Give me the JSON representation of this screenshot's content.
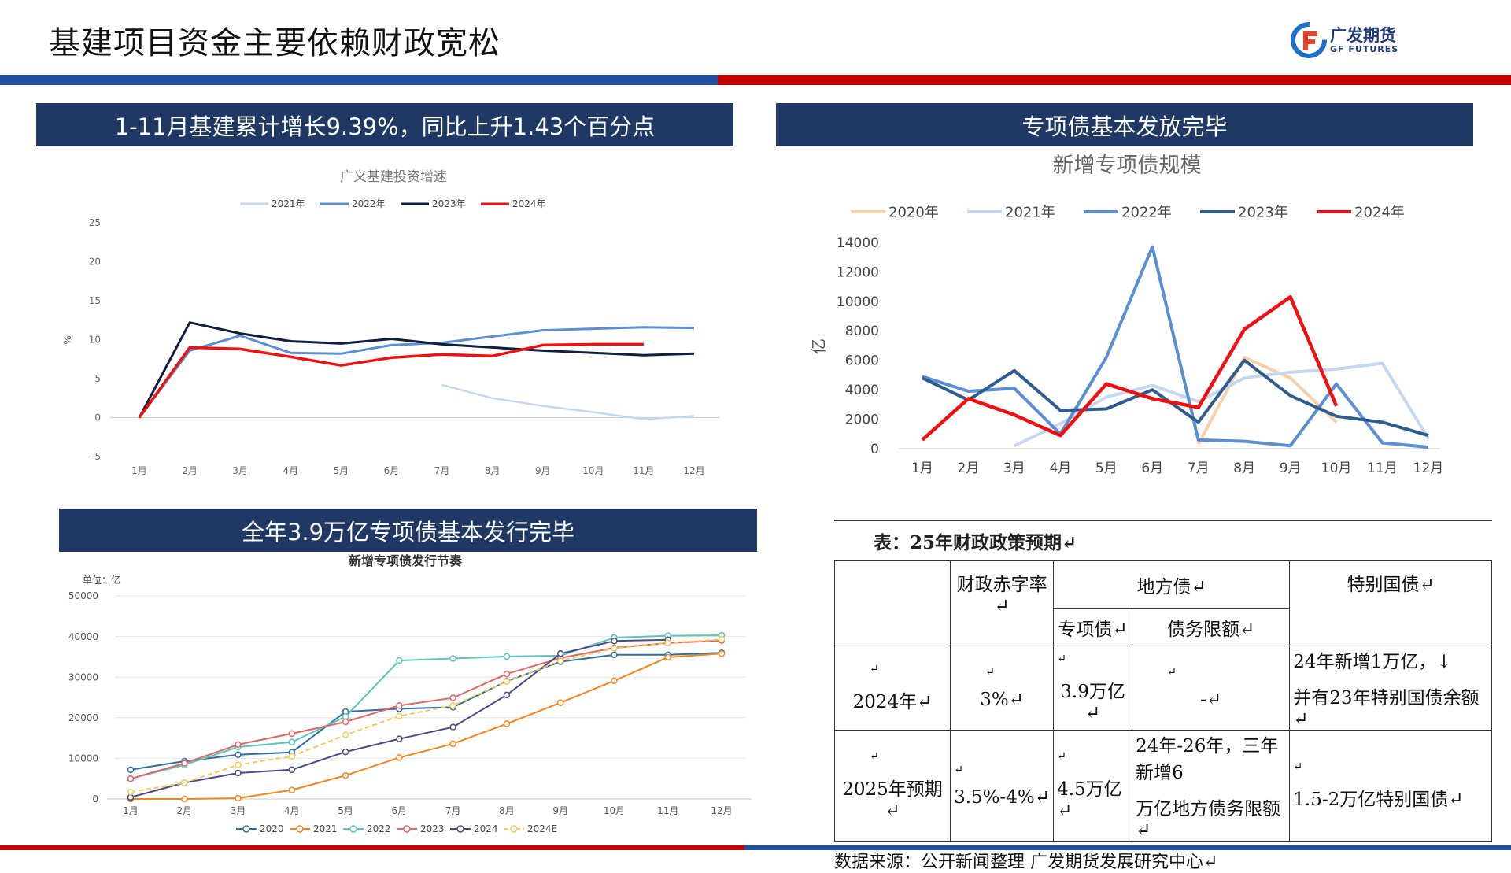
{
  "page": {
    "title": "基建项目资金主要依赖财政宽松",
    "logo_cn": "广发期货",
    "logo_en": "GF FUTURES"
  },
  "headers": {
    "top_left": "1-11月基建累计增长9.39%，同比上升1.43个百分点",
    "top_right": "专项债基本发放完毕",
    "bottom_left": "全年3.9万亿专项债基本发行完毕"
  },
  "colors": {
    "header_bg": "#1f3864",
    "band_blue": "#1f4e9c",
    "band_red": "#c00000"
  },
  "chart_data": [
    {
      "id": "infra",
      "type": "line",
      "title": "广义基建投资增速",
      "ylabel": "%",
      "ylim": [
        -5,
        25
      ],
      "yticks": [
        -5,
        0,
        5,
        10,
        15,
        20,
        25
      ],
      "grid": false,
      "legend": "top",
      "categories": [
        "1月",
        "2月",
        "3月",
        "4月",
        "5月",
        "6月",
        "7月",
        "8月",
        "9月",
        "10月",
        "11月",
        "12月"
      ],
      "series": [
        {
          "name": "2021年",
          "color": "#c5d7ee",
          "width": 2.5,
          "values": [
            null,
            null,
            null,
            null,
            null,
            null,
            4.2,
            2.5,
            1.5,
            0.7,
            -0.2,
            0.2
          ]
        },
        {
          "name": "2022年",
          "color": "#5b8fd4",
          "width": 3,
          "values": [
            0,
            8.6,
            10.5,
            8.3,
            8.2,
            9.3,
            9.6,
            10.4,
            11.2,
            11.4,
            11.6,
            11.5
          ]
        },
        {
          "name": "2023年",
          "color": "#0f1f3d",
          "width": 3,
          "values": [
            0,
            12.2,
            10.8,
            9.8,
            9.5,
            10.1,
            9.4,
            9.0,
            8.6,
            8.3,
            8.0,
            8.2
          ]
        },
        {
          "name": "2024年",
          "color": "#ee1111",
          "width": 3.5,
          "values": [
            0,
            9.0,
            8.8,
            7.8,
            6.7,
            7.7,
            8.1,
            7.9,
            9.3,
            9.4,
            9.4,
            null
          ]
        }
      ]
    },
    {
      "id": "special_bond",
      "type": "line",
      "title": "新增专项债规模",
      "ylabel": "亿",
      "ylim": [
        0,
        14000
      ],
      "yticks": [
        0,
        2000,
        4000,
        6000,
        8000,
        10000,
        12000,
        14000
      ],
      "grid": false,
      "legend": "top",
      "categories": [
        "1月",
        "2月",
        "3月",
        "4月",
        "5月",
        "6月",
        "7月",
        "8月",
        "9月",
        "10月",
        "11月",
        "12月"
      ],
      "series": [
        {
          "name": "2020年",
          "color": "#f8cfa8",
          "width": 4,
          "values": [
            null,
            null,
            null,
            null,
            null,
            null,
            300,
            6200,
            4800,
            1800,
            null,
            null
          ]
        },
        {
          "name": "2021年",
          "color": "#c5d7ee",
          "width": 4,
          "values": [
            null,
            null,
            200,
            1700,
            3500,
            4300,
            3200,
            4800,
            5200,
            5400,
            5800,
            700
          ]
        },
        {
          "name": "2022年",
          "color": "#5b8fd4",
          "width": 4,
          "values": [
            4900,
            3900,
            4100,
            1000,
            6200,
            13700,
            600,
            500,
            200,
            4400,
            400,
            100
          ]
        },
        {
          "name": "2023年",
          "color": "#2f5c8f",
          "width": 4,
          "values": [
            4800,
            3300,
            5300,
            2600,
            2700,
            4000,
            1800,
            6000,
            3600,
            2200,
            1800,
            900
          ]
        },
        {
          "name": "2024年",
          "color": "#ee1111",
          "width": 4.5,
          "values": [
            600,
            3400,
            2300,
            900,
            4400,
            3400,
            2800,
            8100,
            10300,
            2900,
            null,
            null
          ]
        }
      ]
    },
    {
      "id": "cumulative",
      "type": "line",
      "title": "新增专项债发行节奏",
      "unit_label": "单位：亿",
      "ylim": [
        0,
        50000
      ],
      "yticks": [
        0,
        10000,
        20000,
        30000,
        40000,
        50000
      ],
      "grid": true,
      "legend": "bottom",
      "categories": [
        "1月",
        "2月",
        "3月",
        "4月",
        "5月",
        "6月",
        "7月",
        "8月",
        "9月",
        "10月",
        "11月",
        "12月"
      ],
      "series": [
        {
          "name": "2020",
          "color": "#2f6f9f",
          "values": [
            7200,
            9300,
            10900,
            11500,
            21500,
            22200,
            22600,
            29000,
            33800,
            35500,
            35500,
            36000
          ]
        },
        {
          "name": "2021",
          "color": "#f0861e",
          "values": [
            0,
            0,
            200,
            2200,
            5800,
            10200,
            13600,
            18500,
            23700,
            29100,
            34900,
            35800
          ]
        },
        {
          "name": "2022",
          "color": "#5cc5b8",
          "values": [
            5000,
            8400,
            12800,
            14000,
            20300,
            34100,
            34600,
            35100,
            35300,
            39700,
            40200,
            40300
          ]
        },
        {
          "name": "2023",
          "color": "#e06767",
          "values": [
            5000,
            8800,
            13400,
            16100,
            19000,
            23000,
            24900,
            30800,
            34700,
            37200,
            38400,
            39000
          ]
        },
        {
          "name": "2024",
          "color": "#4b4b8a",
          "values": [
            400,
            4000,
            6400,
            7200,
            11600,
            14800,
            17700,
            25600,
            35800,
            38900,
            39200,
            null
          ]
        },
        {
          "name": "2024E",
          "color": "#f5c85a",
          "dashed": true,
          "values": [
            1700,
            4000,
            8400,
            10500,
            15800,
            20400,
            23000,
            28900,
            34000,
            37100,
            38400,
            39300
          ]
        }
      ]
    }
  ],
  "policy_table": {
    "caption": "表：25年财政政策预期↵",
    "headers": {
      "deficit": "财政赤字率↵",
      "local_debt": "地方债↵",
      "special": "专项债↵",
      "debt_limit": "债务限额↵",
      "special_treasury": "特别国债↵"
    },
    "row_2024": {
      "year": "2024年↵",
      "deficit": "3%↵",
      "special": "3.9万亿↵",
      "debt_limit": "-↵",
      "treasury_line1": "24年新增1万亿，↓",
      "treasury_line2": "并有23年特别国债余额↵"
    },
    "row_2025": {
      "year": "2025年预期↵",
      "deficit": "3.5%-4%↵",
      "special": "4.5万亿↵",
      "debt_limit_line1": "24年-26年，三年新增6",
      "debt_limit_line2": "万亿地方债务限额↵",
      "treasury": "1.5-2万亿特别国债↵"
    },
    "mark": "↵",
    "source": "数据来源：公开新闻整理 广发期货发展研究中心↵"
  }
}
